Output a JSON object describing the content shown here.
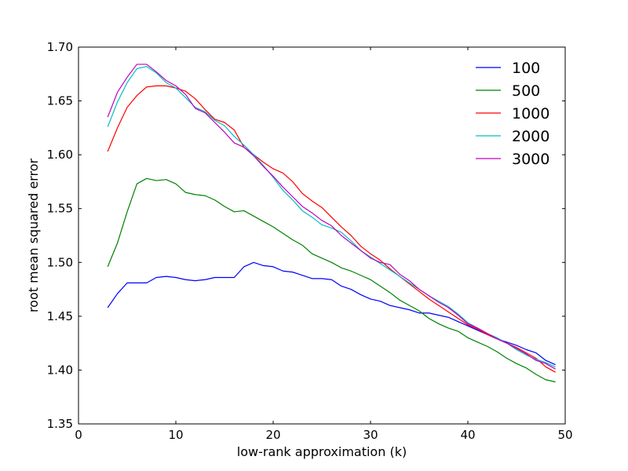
{
  "chart_data": {
    "type": "line",
    "title": "",
    "xlabel": "low-rank approximation (k)",
    "ylabel": "root mean squared error",
    "xlim": [
      0,
      50
    ],
    "ylim": [
      1.35,
      1.7
    ],
    "xticks": [
      "0",
      "10",
      "20",
      "30",
      "40",
      "50"
    ],
    "yticks": [
      "1.35",
      "1.40",
      "1.45",
      "1.50",
      "1.55",
      "1.60",
      "1.65",
      "1.70"
    ],
    "grid": false,
    "legend_position": "top-right",
    "x": [
      3,
      4,
      5,
      6,
      7,
      8,
      9,
      10,
      11,
      12,
      13,
      14,
      15,
      16,
      17,
      18,
      19,
      20,
      21,
      22,
      23,
      24,
      25,
      26,
      27,
      28,
      29,
      30,
      31,
      32,
      33,
      34,
      35,
      36,
      37,
      38,
      39,
      40,
      41,
      42,
      43,
      44,
      45,
      46,
      47,
      48,
      49
    ],
    "series": [
      {
        "name": "100",
        "color": "#0000ff",
        "values": [
          1.458,
          1.471,
          1.481,
          1.481,
          1.481,
          1.486,
          1.487,
          1.486,
          1.484,
          1.483,
          1.484,
          1.486,
          1.486,
          1.486,
          1.496,
          1.5,
          1.497,
          1.496,
          1.492,
          1.491,
          1.488,
          1.485,
          1.485,
          1.484,
          1.478,
          1.475,
          1.47,
          1.466,
          1.464,
          1.46,
          1.458,
          1.456,
          1.453,
          1.453,
          1.451,
          1.449,
          1.445,
          1.441,
          1.437,
          1.433,
          1.429,
          1.426,
          1.423,
          1.419,
          1.416,
          1.409,
          1.405
        ]
      },
      {
        "name": "500",
        "color": "#008000",
        "values": [
          1.496,
          1.518,
          1.547,
          1.573,
          1.578,
          1.576,
          1.577,
          1.573,
          1.565,
          1.563,
          1.562,
          1.558,
          1.552,
          1.547,
          1.548,
          1.543,
          1.538,
          1.533,
          1.527,
          1.521,
          1.516,
          1.508,
          1.504,
          1.5,
          1.495,
          1.492,
          1.488,
          1.484,
          1.478,
          1.472,
          1.465,
          1.46,
          1.455,
          1.448,
          1.443,
          1.439,
          1.436,
          1.43,
          1.426,
          1.422,
          1.417,
          1.411,
          1.406,
          1.402,
          1.396,
          1.391,
          1.389
        ]
      },
      {
        "name": "1000",
        "color": "#ff0000",
        "values": [
          1.603,
          1.625,
          1.644,
          1.655,
          1.663,
          1.664,
          1.664,
          1.662,
          1.659,
          1.652,
          1.642,
          1.633,
          1.63,
          1.623,
          1.607,
          1.6,
          1.593,
          1.587,
          1.583,
          1.575,
          1.564,
          1.557,
          1.551,
          1.542,
          1.533,
          1.525,
          1.515,
          1.508,
          1.502,
          1.494,
          1.487,
          1.48,
          1.473,
          1.466,
          1.46,
          1.454,
          1.448,
          1.442,
          1.438,
          1.433,
          1.429,
          1.425,
          1.421,
          1.416,
          1.411,
          1.403,
          1.398
        ]
      },
      {
        "name": "2000",
        "color": "#00bfbf",
        "values": [
          1.626,
          1.649,
          1.667,
          1.68,
          1.682,
          1.676,
          1.667,
          1.662,
          1.653,
          1.644,
          1.64,
          1.632,
          1.627,
          1.617,
          1.609,
          1.6,
          1.59,
          1.579,
          1.567,
          1.558,
          1.548,
          1.542,
          1.535,
          1.532,
          1.528,
          1.52,
          1.511,
          1.505,
          1.499,
          1.493,
          1.487,
          1.481,
          1.475,
          1.469,
          1.464,
          1.459,
          1.452,
          1.444,
          1.439,
          1.434,
          1.43,
          1.425,
          1.419,
          1.414,
          1.41,
          1.407,
          1.403
        ]
      },
      {
        "name": "3000",
        "color": "#bf00bf",
        "values": [
          1.635,
          1.658,
          1.672,
          1.684,
          1.684,
          1.677,
          1.669,
          1.664,
          1.656,
          1.643,
          1.639,
          1.63,
          1.621,
          1.611,
          1.607,
          1.599,
          1.589,
          1.58,
          1.57,
          1.561,
          1.552,
          1.546,
          1.539,
          1.534,
          1.525,
          1.518,
          1.511,
          1.504,
          1.5,
          1.498,
          1.489,
          1.483,
          1.475,
          1.469,
          1.463,
          1.458,
          1.451,
          1.443,
          1.439,
          1.434,
          1.429,
          1.425,
          1.42,
          1.415,
          1.409,
          1.406,
          1.401
        ]
      }
    ]
  }
}
